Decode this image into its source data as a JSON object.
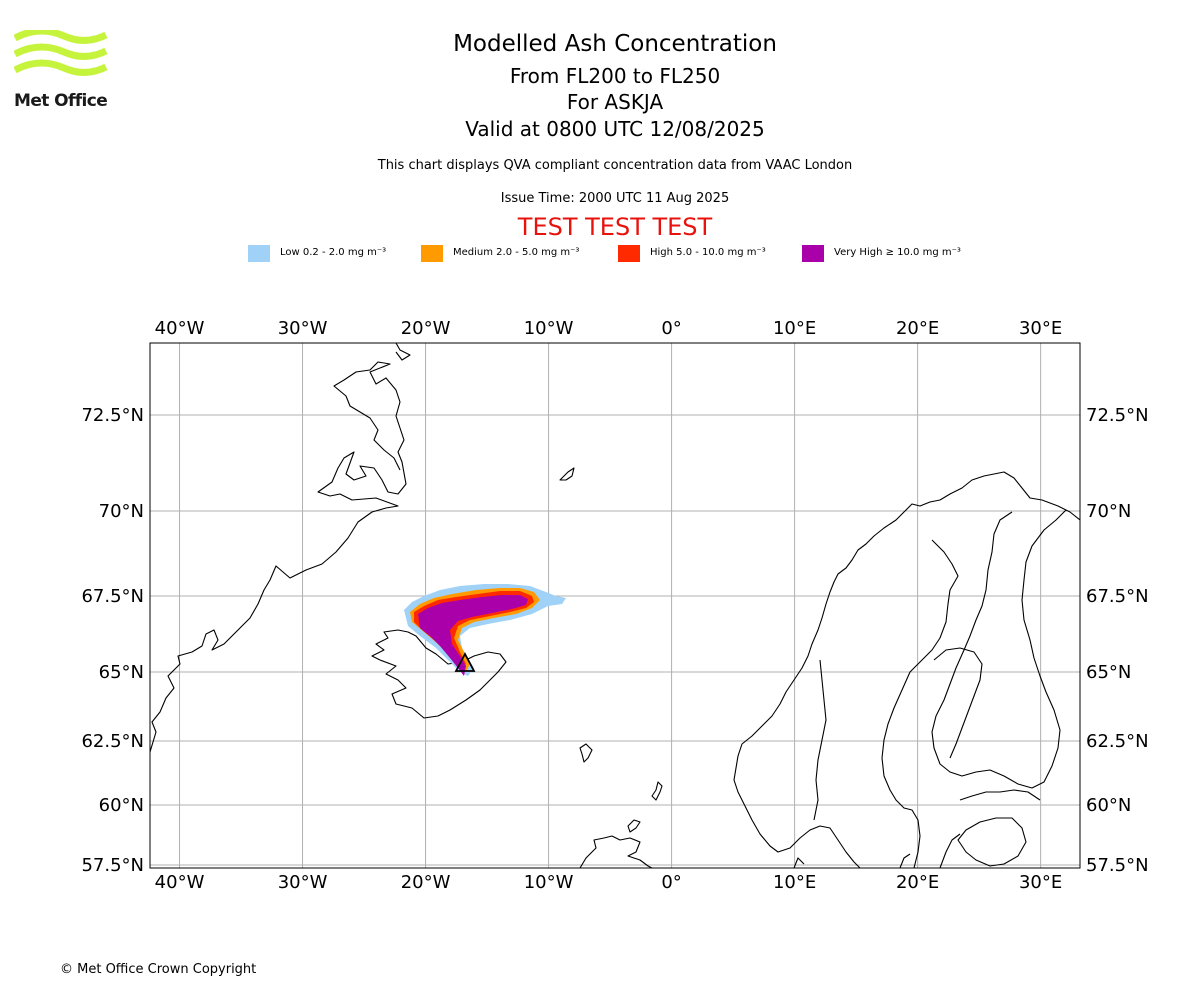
{
  "brand": {
    "name": "Met Office",
    "logo_color": "#c6f33c"
  },
  "header": {
    "title": "Modelled Ash Concentration",
    "levels": "From FL200 to FL250",
    "volcano": "For ASKJA",
    "valid": "Valid at 0800 UTC 12/08/2025",
    "description": "This chart displays QVA compliant concentration data from VAAC London",
    "issue": "Issue Time: 2000 UTC 11 Aug 2025",
    "test_banner": "TEST TEST TEST"
  },
  "legend": [
    {
      "label": "Low 0.2 - 2.0 mg m⁻³",
      "color": "#a0d2f8"
    },
    {
      "label": "Medium 2.0 - 5.0 mg m⁻³",
      "color": "#ff9a00"
    },
    {
      "label": "High 5.0 - 10.0 mg m⁻³",
      "color": "#ff2a00"
    },
    {
      "label": "Very High ≥ 10.0 mg m⁻³",
      "color": "#aa00aa"
    }
  ],
  "map": {
    "lon_range": [
      -42.4,
      33.2
    ],
    "lat_range": [
      57.3,
      74.6
    ],
    "lon_ticks": [
      {
        "value": -40,
        "label": "40°W"
      },
      {
        "value": -30,
        "label": "30°W"
      },
      {
        "value": -20,
        "label": "20°W"
      },
      {
        "value": -10,
        "label": "10°W"
      },
      {
        "value": 0,
        "label": "0°"
      },
      {
        "value": 10,
        "label": "10°E"
      },
      {
        "value": 20,
        "label": "20°E"
      },
      {
        "value": 30,
        "label": "30°E"
      }
    ],
    "lat_ticks": [
      {
        "value": 57.5,
        "label": "57.5°N"
      },
      {
        "value": 60,
        "label": "60°N"
      },
      {
        "value": 62.5,
        "label": "62.5°N"
      },
      {
        "value": 65,
        "label": "65°N"
      },
      {
        "value": 67.5,
        "label": "67.5°N"
      },
      {
        "value": 70,
        "label": "70°N"
      },
      {
        "value": 72.5,
        "label": "72.5°N"
      }
    ],
    "grid": true,
    "volcano_marker": {
      "name": "ASKJA",
      "lon": -16.75,
      "lat": 65.03
    }
  },
  "footer": {
    "copyright": "© Met Office Crown Copyright"
  }
}
